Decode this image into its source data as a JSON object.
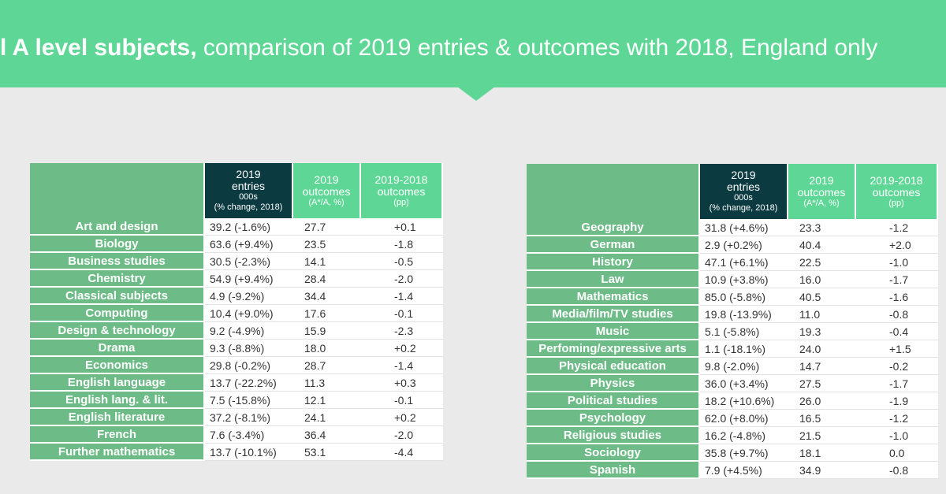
{
  "title": {
    "lead": "l A level subjects,",
    "rest": " comparison of 2019 entries & outcomes with 2018, England only"
  },
  "columns": {
    "entries": [
      "2019",
      "entries",
      "000s",
      "(% change, 2018)"
    ],
    "outcomes": [
      "2019",
      "outcomes",
      "(A*/A, %)"
    ],
    "change": [
      "2019-2018",
      "outcomes",
      "(pp)"
    ]
  },
  "colors": {
    "banner": "#5ed796",
    "subject_cell": "#6dbb87",
    "entries_header": "#0b3a40",
    "background": "#eaeaea"
  },
  "chart_data": [
    {
      "type": "table",
      "rows": [
        {
          "subject": "Art and design",
          "entries": "39.2 (-1.6%)",
          "outcomes": "27.7",
          "change": "+0.1"
        },
        {
          "subject": "Biology",
          "entries": "63.6 (+9.4%)",
          "outcomes": "23.5",
          "change": "-1.8"
        },
        {
          "subject": "Business studies",
          "entries": "30.5 (-2.3%)",
          "outcomes": "14.1",
          "change": "-0.5"
        },
        {
          "subject": "Chemistry",
          "entries": "54.9 (+9.4%)",
          "outcomes": "28.4",
          "change": "-2.0"
        },
        {
          "subject": "Classical subjects",
          "entries": "4.9 (-9.2%)",
          "outcomes": "34.4",
          "change": "-1.4"
        },
        {
          "subject": "Computing",
          "entries": "10.4 (+9.0%)",
          "outcomes": "17.6",
          "change": "-0.1"
        },
        {
          "subject": "Design & technology",
          "entries": "9.2 (-4.9%)",
          "outcomes": "15.9",
          "change": "-2.3"
        },
        {
          "subject": "Drama",
          "entries": "9.3 (-8.8%)",
          "outcomes": "18.0",
          "change": "+0.2"
        },
        {
          "subject": "Economics",
          "entries": "29.8 (-0.2%)",
          "outcomes": "28.7",
          "change": "-1.4"
        },
        {
          "subject": "English language",
          "entries": "13.7 (-22.2%)",
          "outcomes": "11.3",
          "change": "+0.3"
        },
        {
          "subject": "English lang. & lit.",
          "entries": "7.5 (-15.8%)",
          "outcomes": "12.1",
          "change": "-0.1"
        },
        {
          "subject": "English literature",
          "entries": "37.2 (-8.1%)",
          "outcomes": "24.1",
          "change": "+0.2"
        },
        {
          "subject": "French",
          "entries": "7.6 (-3.4%)",
          "outcomes": "36.4",
          "change": "-2.0"
        },
        {
          "subject": "Further mathematics",
          "entries": "13.7 (-10.1%)",
          "outcomes": "53.1",
          "change": "-4.4"
        }
      ]
    },
    {
      "type": "table",
      "rows": [
        {
          "subject": "Geography",
          "entries": "31.8 (+4.6%)",
          "outcomes": "23.3",
          "change": "-1.2"
        },
        {
          "subject": "German",
          "entries": "2.9 (+0.2%)",
          "outcomes": "40.4",
          "change": "+2.0"
        },
        {
          "subject": "History",
          "entries": "47.1 (+6.1%)",
          "outcomes": "22.5",
          "change": "-1.0"
        },
        {
          "subject": "Law",
          "entries": "10.9 (+3.8%)",
          "outcomes": "16.0",
          "change": "-1.7"
        },
        {
          "subject": "Mathematics",
          "entries": "85.0 (-5.8%)",
          "outcomes": "40.5",
          "change": "-1.6"
        },
        {
          "subject": "Media/film/TV studies",
          "entries": "19.8 (-13.9%)",
          "outcomes": "11.0",
          "change": "-0.8"
        },
        {
          "subject": "Music",
          "entries": "5.1 (-5.8%)",
          "outcomes": "19.3",
          "change": "-0.4"
        },
        {
          "subject": "Perfoming/expressive arts",
          "entries": "1.1 (-18.1%)",
          "outcomes": "24.0",
          "change": "+1.5"
        },
        {
          "subject": "Physical education",
          "entries": "9.8 (-2.0%)",
          "outcomes": "14.7",
          "change": "-0.2"
        },
        {
          "subject": "Physics",
          "entries": "36.0 (+3.4%)",
          "outcomes": "27.5",
          "change": "-1.7"
        },
        {
          "subject": "Political studies",
          "entries": "18.2 (+10.6%)",
          "outcomes": "26.0",
          "change": "-1.9"
        },
        {
          "subject": "Psychology",
          "entries": "62.0 (+8.0%)",
          "outcomes": "16.5",
          "change": "-1.2"
        },
        {
          "subject": "Religious studies",
          "entries": "16.2 (-4.8%)",
          "outcomes": "21.5",
          "change": "-1.0"
        },
        {
          "subject": "Sociology",
          "entries": "35.8 (+9.7%)",
          "outcomes": "18.1",
          "change": "0.0"
        },
        {
          "subject": "Spanish",
          "entries": "7.9 (+4.5%)",
          "outcomes": "34.9",
          "change": "-0.8"
        }
      ]
    }
  ]
}
